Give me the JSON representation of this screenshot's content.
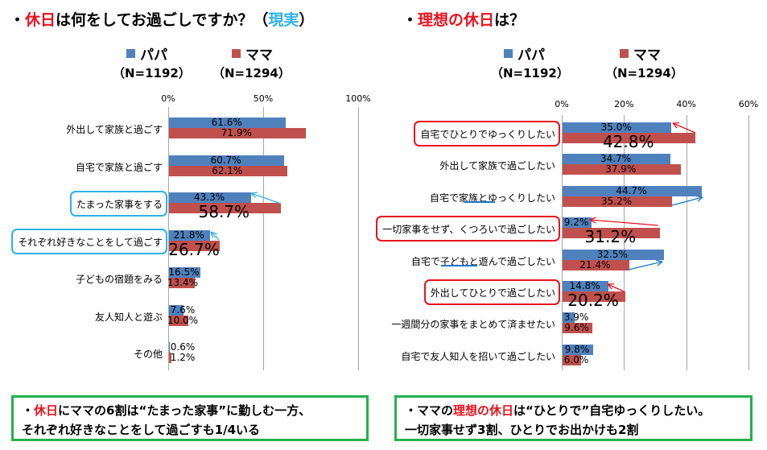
{
  "colors": {
    "papa": "#4f81bd",
    "mama": "#c0504d",
    "highlight_red": "#e8121e",
    "highlight_cyan": "#2eb2e6",
    "note_border": "#22b14c"
  },
  "left": {
    "title_pre": "・",
    "title_red": "休日",
    "title_mid": "は何をしてお過ごしですか？（",
    "title_cyan": "現実",
    "title_post": "）"
  },
  "right": {
    "title_pre": "・",
    "title_red": "理想の休日",
    "title_post": "は？"
  },
  "legend": {
    "papa": "パパ",
    "mama": "ママ",
    "papa_n": "（N=1192）",
    "mama_n": "（N=1294）"
  },
  "chart_data": [
    {
      "type": "bar",
      "orientation": "horizontal",
      "title": "休日は何をしてお過ごしですか？（現実）",
      "xlim": [
        0,
        100
      ],
      "ticks": [
        "0%",
        "50%",
        "100%"
      ],
      "tick_values": [
        0,
        50,
        100
      ],
      "categories": [
        "外出して家族と過ごす",
        "自宅で家族と過ごす",
        "たまった家事をする",
        "それぞれ好きなことをして過ごす",
        "子どもの宿題をみる",
        "友人知人と遊ぶ",
        "その他"
      ],
      "series": [
        {
          "name": "パパ",
          "values": [
            61.6,
            60.7,
            43.3,
            21.8,
            16.5,
            7.6,
            0.6
          ]
        },
        {
          "name": "ママ",
          "values": [
            71.9,
            62.1,
            58.7,
            26.7,
            13.4,
            10.0,
            1.2
          ]
        }
      ],
      "papa_labels": [
        "61.6%",
        "60.7%",
        "43.3%",
        "21.8%",
        "16.5%",
        "7.6%",
        "0.6%"
      ],
      "mama_labels": [
        "71.9%",
        "62.1%",
        "58.7%",
        "26.7%",
        "13.4%",
        "10.0%",
        "1.2%"
      ],
      "highlighted": [
        2,
        3
      ]
    },
    {
      "type": "bar",
      "orientation": "horizontal",
      "title": "理想の休日は？",
      "xlim": [
        0,
        60
      ],
      "ticks": [
        "0%",
        "20%",
        "40%",
        "60%"
      ],
      "tick_values": [
        0,
        20,
        40,
        60
      ],
      "categories": [
        "自宅でひとりでゆっくりしたい",
        "外出して家族で過ごしたい",
        "自宅で家族とゆっくりしたい",
        "一切家事をせず、くつろいで過ごしたい",
        "自宅で子どもと遊んで過ごしたい",
        "外出してひとりで過ごしたい",
        "一週間分の家事をまとめて済ませたい",
        "自宅で友人知人を招いて過ごしたい"
      ],
      "series": [
        {
          "name": "パパ",
          "values": [
            35.0,
            34.7,
            44.7,
            9.2,
            32.5,
            14.8,
            3.9,
            9.8
          ]
        },
        {
          "name": "ママ",
          "values": [
            42.8,
            37.9,
            35.2,
            31.2,
            21.4,
            20.2,
            9.6,
            6.0
          ]
        }
      ],
      "papa_labels": [
        "35.0%",
        "34.7%",
        "44.7%",
        "9.2%",
        "32.5%",
        "14.8%",
        "3.9%",
        "9.8%"
      ],
      "mama_labels": [
        "42.8%",
        "37.9%",
        "35.2%",
        "31.2%",
        "21.4%",
        "20.2%",
        "9.6%",
        "6.0%"
      ],
      "highlighted": [
        0,
        3,
        5
      ]
    }
  ],
  "notes": {
    "left_line1_pre": "・",
    "left_line1_red": "休日",
    "left_line1_post": "にママの6割は“たまった家事”に勤しむ一方、",
    "left_line2": "それぞれ好きなことをして過ごすも1/4いる",
    "right_line1_pre": "・ママの",
    "right_line1_red": "理想の休日",
    "right_line1_post": "は“ひとりで”自宅ゆっくりしたい。",
    "right_line2": "一切家事せず3割、ひとりでお出かけも2割"
  }
}
